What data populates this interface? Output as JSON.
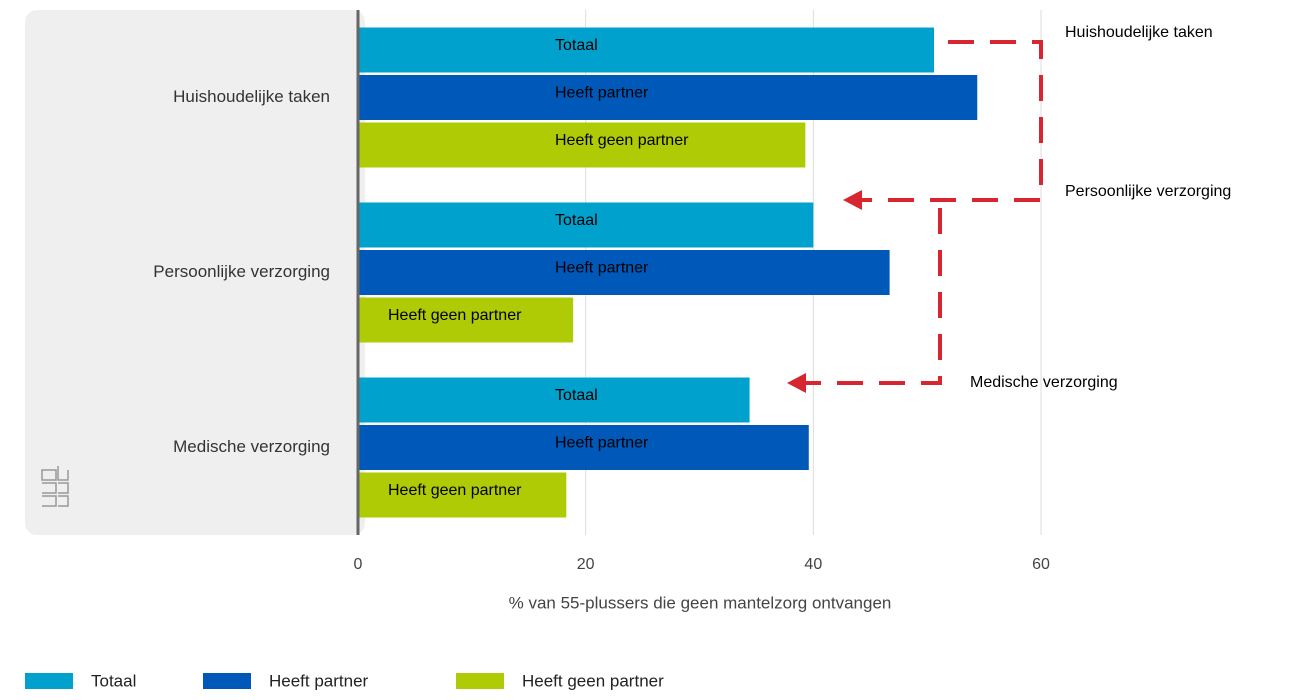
{
  "chart_data": {
    "type": "bar",
    "orientation": "horizontal",
    "categories": [
      "Huishoudelijke taken",
      "Persoonlijke verzorging",
      "Medische verzorging"
    ],
    "series": [
      {
        "name": "Totaal",
        "color": "#00a1cd",
        "values": [
          50.6,
          40.0,
          34.4
        ]
      },
      {
        "name": "Heeft partner",
        "color": "#0058b8",
        "values": [
          54.4,
          46.7,
          39.6
        ]
      },
      {
        "name": "Heeft geen partner",
        "color": "#afcb05",
        "values": [
          39.3,
          18.9,
          18.3
        ]
      }
    ],
    "xlim": [
      0,
      60
    ],
    "xticks": [
      0,
      20,
      40,
      60
    ],
    "grid": true,
    "xlabel": "% van 55-plussers die geen mantelzorg ontvangen",
    "annotations": [
      "Huishoudelijke taken",
      "Persoonlijke verzorging",
      "Medische verzorging"
    ],
    "legend": "bottom-left"
  }
}
